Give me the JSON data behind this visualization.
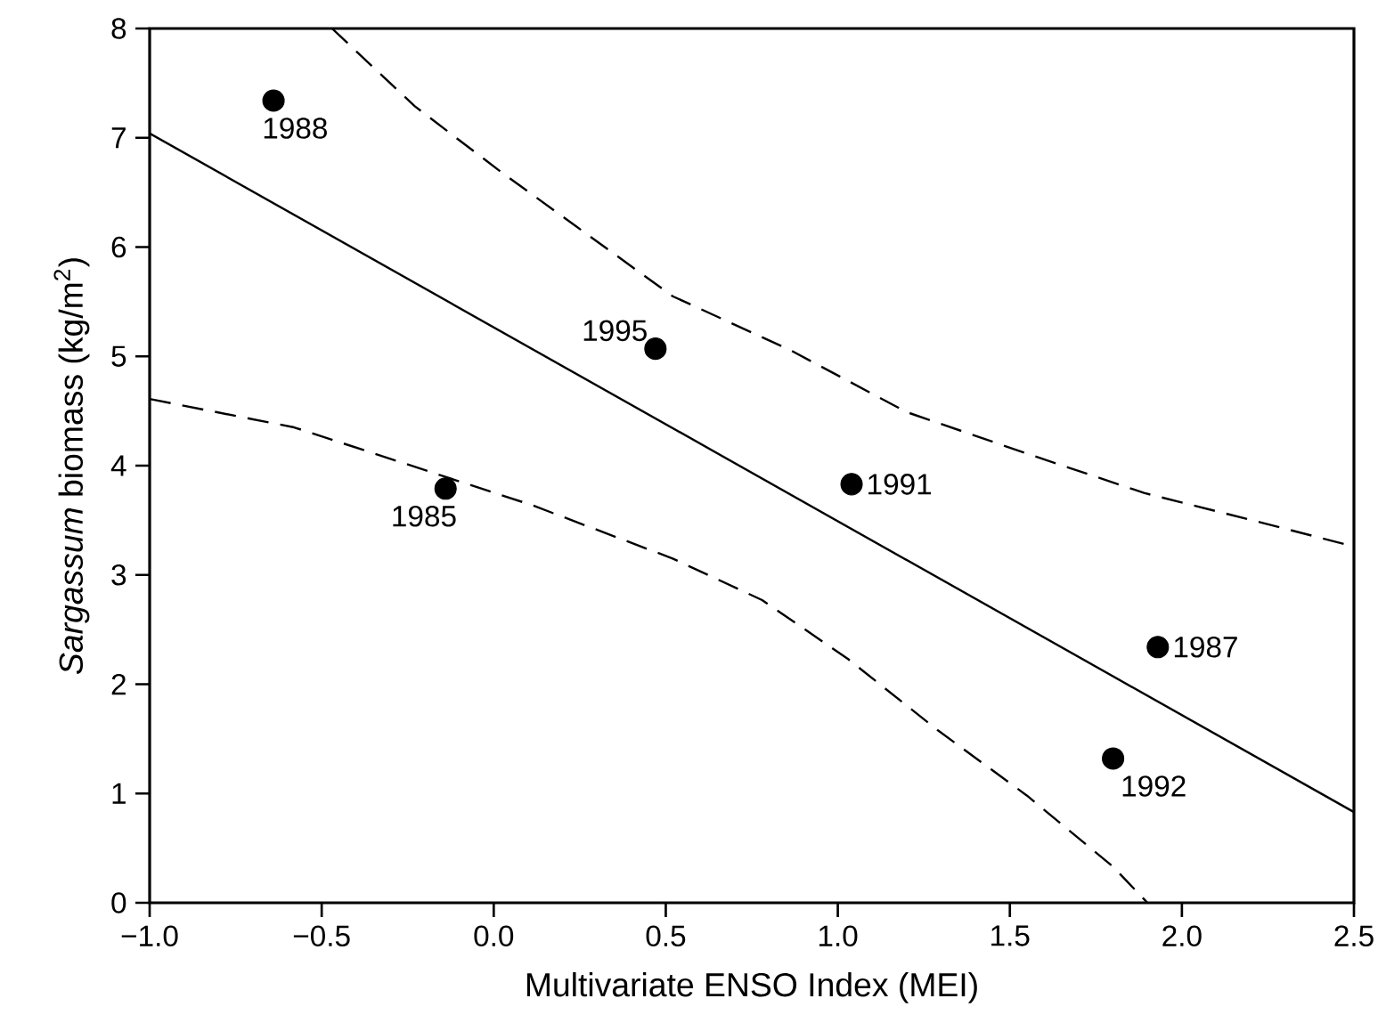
{
  "chart_data": {
    "type": "scatter",
    "xlabel": "Multivariate ENSO Index (MEI)",
    "ylabel": "*Sargassum* biomass (kg/m$^{2}$)",
    "xlim": [
      -1.0,
      2.5
    ],
    "xticks": [
      {
        "value": -1.0,
        "label": "−1.0"
      },
      {
        "value": -0.5,
        "label": "−0.5"
      },
      {
        "value": 0.0,
        "label": "0.0"
      },
      {
        "value": 0.5,
        "label": "0.5"
      },
      {
        "value": 1.0,
        "label": "1.0"
      },
      {
        "value": 1.5,
        "label": "1.5"
      },
      {
        "value": 2.0,
        "label": "2.0"
      },
      {
        "value": 2.5,
        "label": "2.5"
      }
    ],
    "ylim": [
      0,
      8
    ],
    "yticks": [
      0,
      1,
      2,
      3,
      4,
      5,
      6,
      7,
      8
    ],
    "series": [
      {
        "color": "#000000",
        "marker": "circle",
        "x": [
          -0.64,
          0.47,
          -0.14,
          1.04,
          1.93,
          1.8
        ],
        "values": [
          7.34,
          5.07,
          3.79,
          3.83,
          2.34,
          1.32
        ]
      },
      {
        "type": "line",
        "color": "#000000",
        "marker": "none",
        "line_style": "solid",
        "x": [
          -1.0,
          2.5
        ],
        "values": [
          7.04,
          0.83
        ]
      },
      {
        "type": "line",
        "color": "#000000",
        "marker": "none",
        "line_style": "dashed",
        "x": [
          -0.47,
          -0.23,
          0.02,
          0.52,
          0.86,
          1.2,
          1.55,
          1.89,
          2.23,
          2.5
        ],
        "values": [
          8.0,
          7.29,
          6.69,
          5.55,
          5.06,
          4.49,
          4.11,
          3.75,
          3.48,
          3.26
        ]
      },
      {
        "type": "line",
        "color": "#000000",
        "marker": "none",
        "line_style": "dashed",
        "x": [
          -1.0,
          -0.58,
          0.11,
          0.52,
          0.78,
          1.03,
          1.29,
          1.55,
          1.8,
          1.9
        ],
        "values": [
          4.61,
          4.35,
          3.64,
          3.15,
          2.77,
          2.23,
          1.58,
          0.98,
          0.33,
          0.0
        ]
      }
    ],
    "annotations": [
      {
        "text": "1988",
        "x": -0.64,
        "y": 7.34
      },
      {
        "text": "1995",
        "x": 0.47,
        "y": 5.07
      },
      {
        "text": "1985",
        "x": -0.14,
        "y": 3.79
      },
      {
        "text": "1991",
        "x": 1.04,
        "y": 3.83
      },
      {
        "text": "1987",
        "x": 1.93,
        "y": 2.34
      },
      {
        "text": "1992",
        "x": 1.8,
        "y": 1.32
      }
    ]
  }
}
